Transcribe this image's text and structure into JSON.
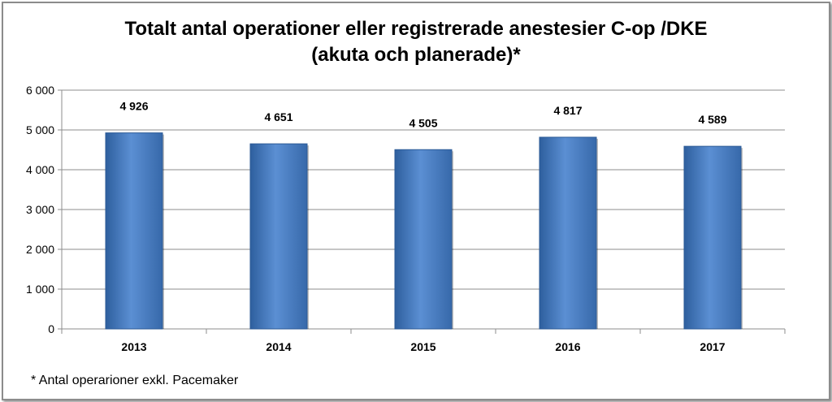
{
  "chart_data": {
    "type": "bar",
    "title_line1": "Totalt antal operationer eller registrerade anestesier C-op /DKE",
    "title_line2": "(akuta och planerade)*",
    "categories": [
      "2013",
      "2014",
      "2015",
      "2016",
      "2017"
    ],
    "values": [
      4926,
      4651,
      4505,
      4817,
      4589
    ],
    "value_labels": [
      "4 926",
      "4 651",
      "4 505",
      "4 817",
      "4 589"
    ],
    "ylim": [
      0,
      6000
    ],
    "yticks": [
      0,
      1000,
      2000,
      3000,
      4000,
      5000,
      6000
    ],
    "ytick_labels": [
      "0",
      "1 000",
      "2 000",
      "3 000",
      "4 000",
      "5 000",
      "6 000"
    ],
    "grid": true,
    "legend": "none",
    "bar_color": "#4a7ebb",
    "footnote": "* Antal operarioner exkl. Pacemaker"
  }
}
